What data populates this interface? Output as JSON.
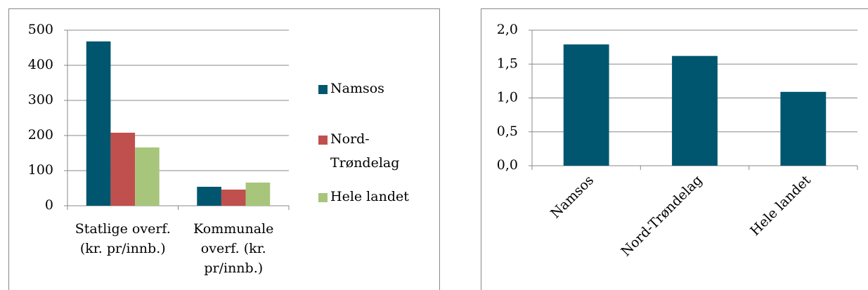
{
  "chart_data": [
    {
      "type": "bar",
      "categories": [
        [
          "Statlige overf.",
          "(kr. pr/innb.)"
        ],
        [
          "Kommunale",
          "overf. (kr.",
          "pr/innb.)"
        ]
      ],
      "series": [
        {
          "name": "Namsos",
          "color": "#00566f",
          "values": [
            468,
            54
          ]
        },
        {
          "name": "Nord-Trøndelag",
          "color": "#c0504d",
          "values": [
            208,
            46
          ]
        },
        {
          "name": "Hele landet",
          "color": "#a8c57c",
          "values": [
            166,
            66
          ]
        }
      ],
      "ylim": [
        0,
        500
      ],
      "yticks": [
        0,
        100,
        200,
        300,
        400,
        500
      ],
      "grid": true,
      "legend": "right"
    },
    {
      "type": "bar",
      "categories": [
        "Namsos",
        "Nord-Trøndelag",
        "Hele landet"
      ],
      "values": [
        1.79,
        1.62,
        1.09
      ],
      "color": "#00566f",
      "ylim": [
        0,
        2
      ],
      "yticks": [
        {
          "value": 0,
          "label": "0,0"
        },
        {
          "value": 0.5,
          "label": "0,5"
        },
        {
          "value": 1,
          "label": "1,0"
        },
        {
          "value": 1.5,
          "label": "1,5"
        },
        {
          "value": 2,
          "label": "2,0"
        }
      ],
      "grid": true
    }
  ]
}
